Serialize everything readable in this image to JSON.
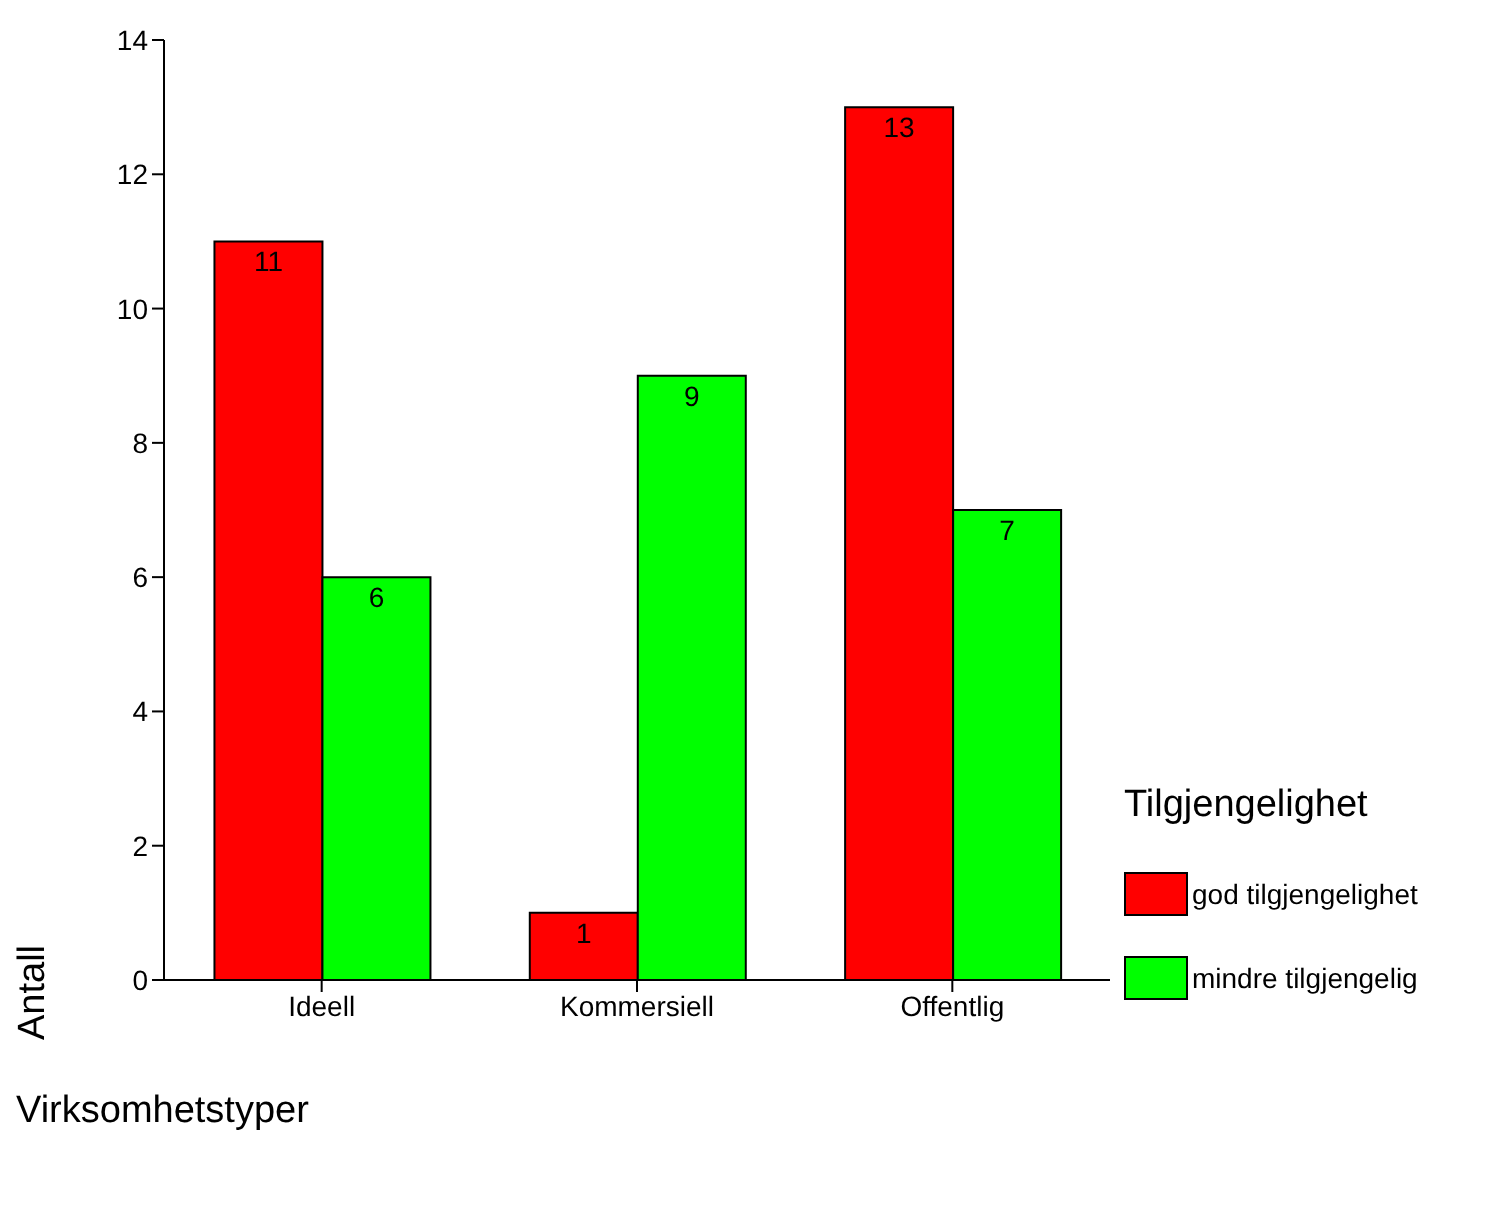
{
  "chart_data": {
    "type": "bar",
    "xlabel": "Virksomhetstyper",
    "ylabel": "Antall",
    "legend_title": "Tilgjengelighet",
    "categories": [
      "Ideell",
      "Kommersiell",
      "Offentlig"
    ],
    "series": [
      {
        "name": "god tilgjengelighet",
        "color": "#ff0000",
        "values": [
          11,
          1,
          13
        ]
      },
      {
        "name": "mindre tilgjengelig",
        "color": "#00ff00",
        "values": [
          6,
          9,
          7
        ]
      }
    ],
    "ylim": [
      0,
      14
    ],
    "yticks": [
      0,
      2,
      4,
      6,
      8,
      10,
      12,
      14
    ],
    "data_labels": true,
    "legend": "right"
  }
}
